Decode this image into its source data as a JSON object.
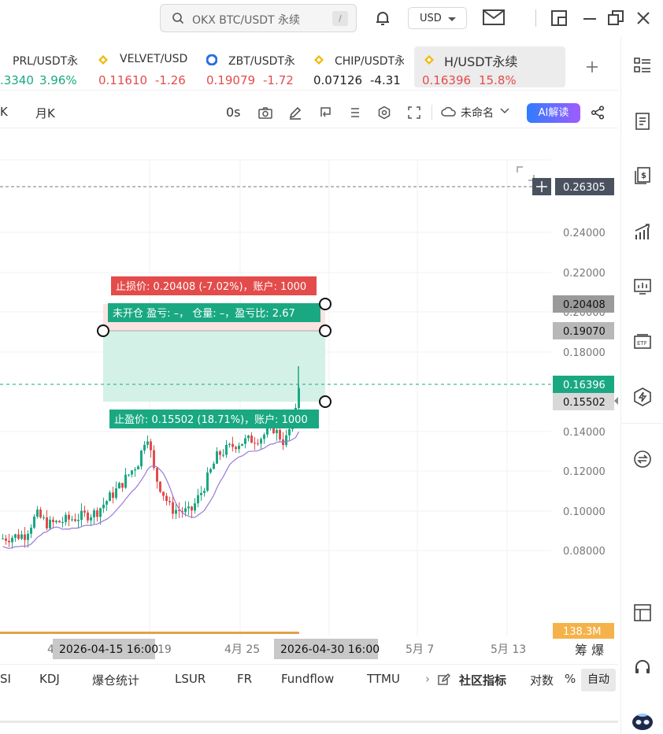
{
  "topbar": {
    "search_text": "OKX BTC/USDT 永续",
    "search_shortcut": "/",
    "currency": "USD"
  },
  "tickers": [
    {
      "symbol": "PRL/USDT永",
      "price": ".3340",
      "change": "3.96%",
      "price_color": "green",
      "change_color": "green",
      "coin_icon": "none"
    },
    {
      "symbol": "VELVET/USD",
      "price": "0.11610",
      "change": "-1.26",
      "price_color": "red",
      "change_color": "red",
      "coin_icon": "bnb-icon"
    },
    {
      "symbol": "ZBT/USDT永",
      "price": "0.19079",
      "change": "-1.72",
      "price_color": "red",
      "change_color": "red",
      "coin_icon": "zbt-icon"
    },
    {
      "symbol": "CHIP/USDT永",
      "price": "0.07126",
      "change": "-4.31",
      "price_color": "dark",
      "change_color": "dark",
      "coin_icon": "bnb-icon"
    },
    {
      "symbol": "H/USDT永续",
      "price": "0.16396",
      "change": "15.8%",
      "price_color": "red",
      "change_color": "red",
      "coin_icon": "bnb-icon"
    }
  ],
  "chart_toolbar": {
    "interval_a": "K",
    "interval_b": "月K",
    "countdown": "0s",
    "layout_name": "未命名",
    "ai_button": "AI解读"
  },
  "chart": {
    "y_ticks": [
      "0.24000",
      "0.22000",
      "0.20000",
      "0.18000",
      "0.14000",
      "0.12000",
      "0.10000",
      "0.08000"
    ],
    "crosshair_price": "0.26305",
    "stop_price_tag": "0.20408",
    "entry_price_tag": "0.19070",
    "last_price_tag": "0.16396",
    "take_price_tag": "0.15502",
    "volume_tag": "138.3M",
    "x_ticks": [
      {
        "label": "4"
      },
      {
        "label": "19"
      },
      {
        "label": "4月 25"
      },
      {
        "label": "5月 7"
      },
      {
        "label": "5月 13"
      }
    ],
    "x_highlight_left": "2026-04-15 16:00",
    "x_highlight_right": "2026-04-30 16:00",
    "x_right_labels": "筹 爆",
    "stop_label": "止损价: 0.20408 (-7.02%)，账户: 1000",
    "position_label": "未开仓  盈亏: –，  仓量: –，盈亏比: 2.67",
    "take_label": "止盈价: 0.15502 (18.71%)，账户: 1000",
    "colors": {
      "up": "#1aa882",
      "down": "#e44b4b",
      "ma": "#9a79d6",
      "zone": "#d4f1e7"
    }
  },
  "indicators": {
    "items": [
      "SI",
      "KDJ",
      "爆仓统计",
      "LSUR",
      "FR",
      "Fundflow",
      "TTMU"
    ],
    "more": "›",
    "community": "社区指标",
    "log": "对数",
    "percent": "%",
    "auto": "自动"
  },
  "sidebar_icons": [
    "list-icon",
    "document-icon",
    "dollar-file-icon",
    "growth-chart-icon",
    "monitor-chart-icon",
    "etf-icon",
    "hexagon-icon",
    "swap-icon",
    "layout-icon",
    "headset-icon",
    "robot-icon"
  ]
}
